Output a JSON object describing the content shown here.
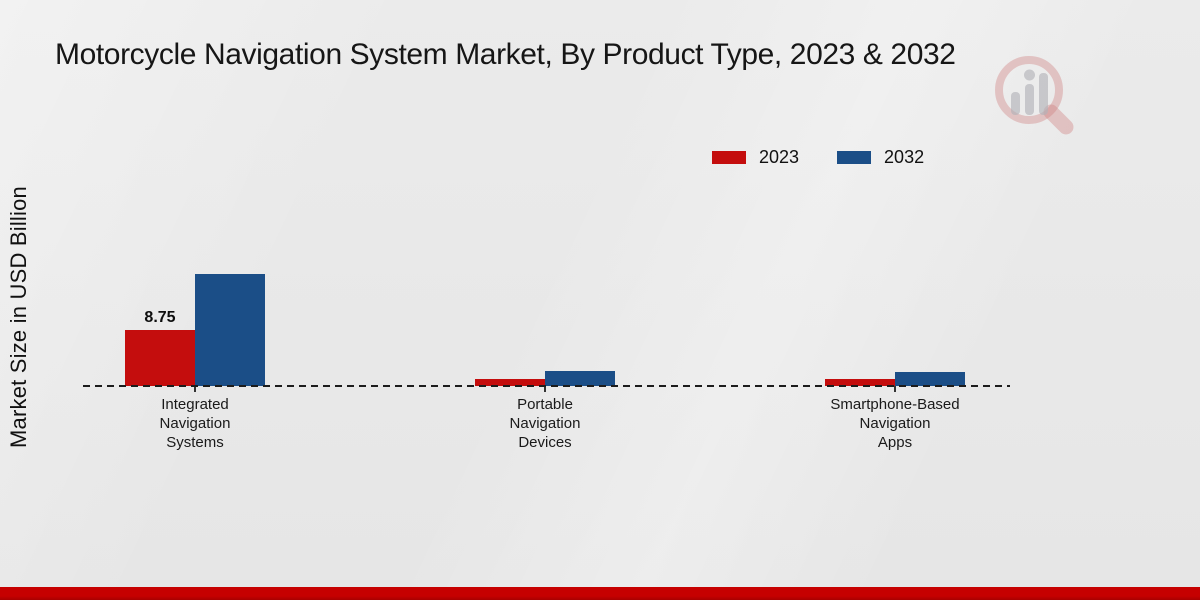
{
  "title": "Motorcycle Navigation System Market, By Product Type, 2023 & 2032",
  "y_axis_label": "Market Size in USD Billion",
  "colors": {
    "series_2023": "#c40d0d",
    "series_2032": "#1b4e87",
    "bottom_bar_top": "#c60000",
    "bottom_bar_bottom": "#a80000",
    "background": "#e8e8e8",
    "text": "#161616"
  },
  "legend": {
    "position": "top-right",
    "items": [
      {
        "label": "2023",
        "color": "#c40d0d"
      },
      {
        "label": "2032",
        "color": "#1b4e87"
      }
    ]
  },
  "chart_data": {
    "type": "bar",
    "title": "Motorcycle Navigation System Market, By Product Type, 2023 & 2032",
    "ylabel": "Market Size in USD Billion",
    "xlabel": "",
    "ylim": [
      0,
      18
    ],
    "grid": false,
    "baseline_style": "dashed",
    "legend_position": "top-right",
    "categories": [
      "Integrated\nNavigation\nSystems",
      "Portable\nNavigation\nDevices",
      "Smartphone-Based\nNavigation\nApps"
    ],
    "series": [
      {
        "name": "2023",
        "color": "#c40d0d",
        "values": [
          8.75,
          1.15,
          1.05
        ]
      },
      {
        "name": "2032",
        "color": "#1b4e87",
        "values": [
          17.5,
          2.3,
          2.2
        ]
      }
    ],
    "data_labels": [
      {
        "series": "2023",
        "category_index": 0,
        "text": "8.75"
      }
    ]
  }
}
